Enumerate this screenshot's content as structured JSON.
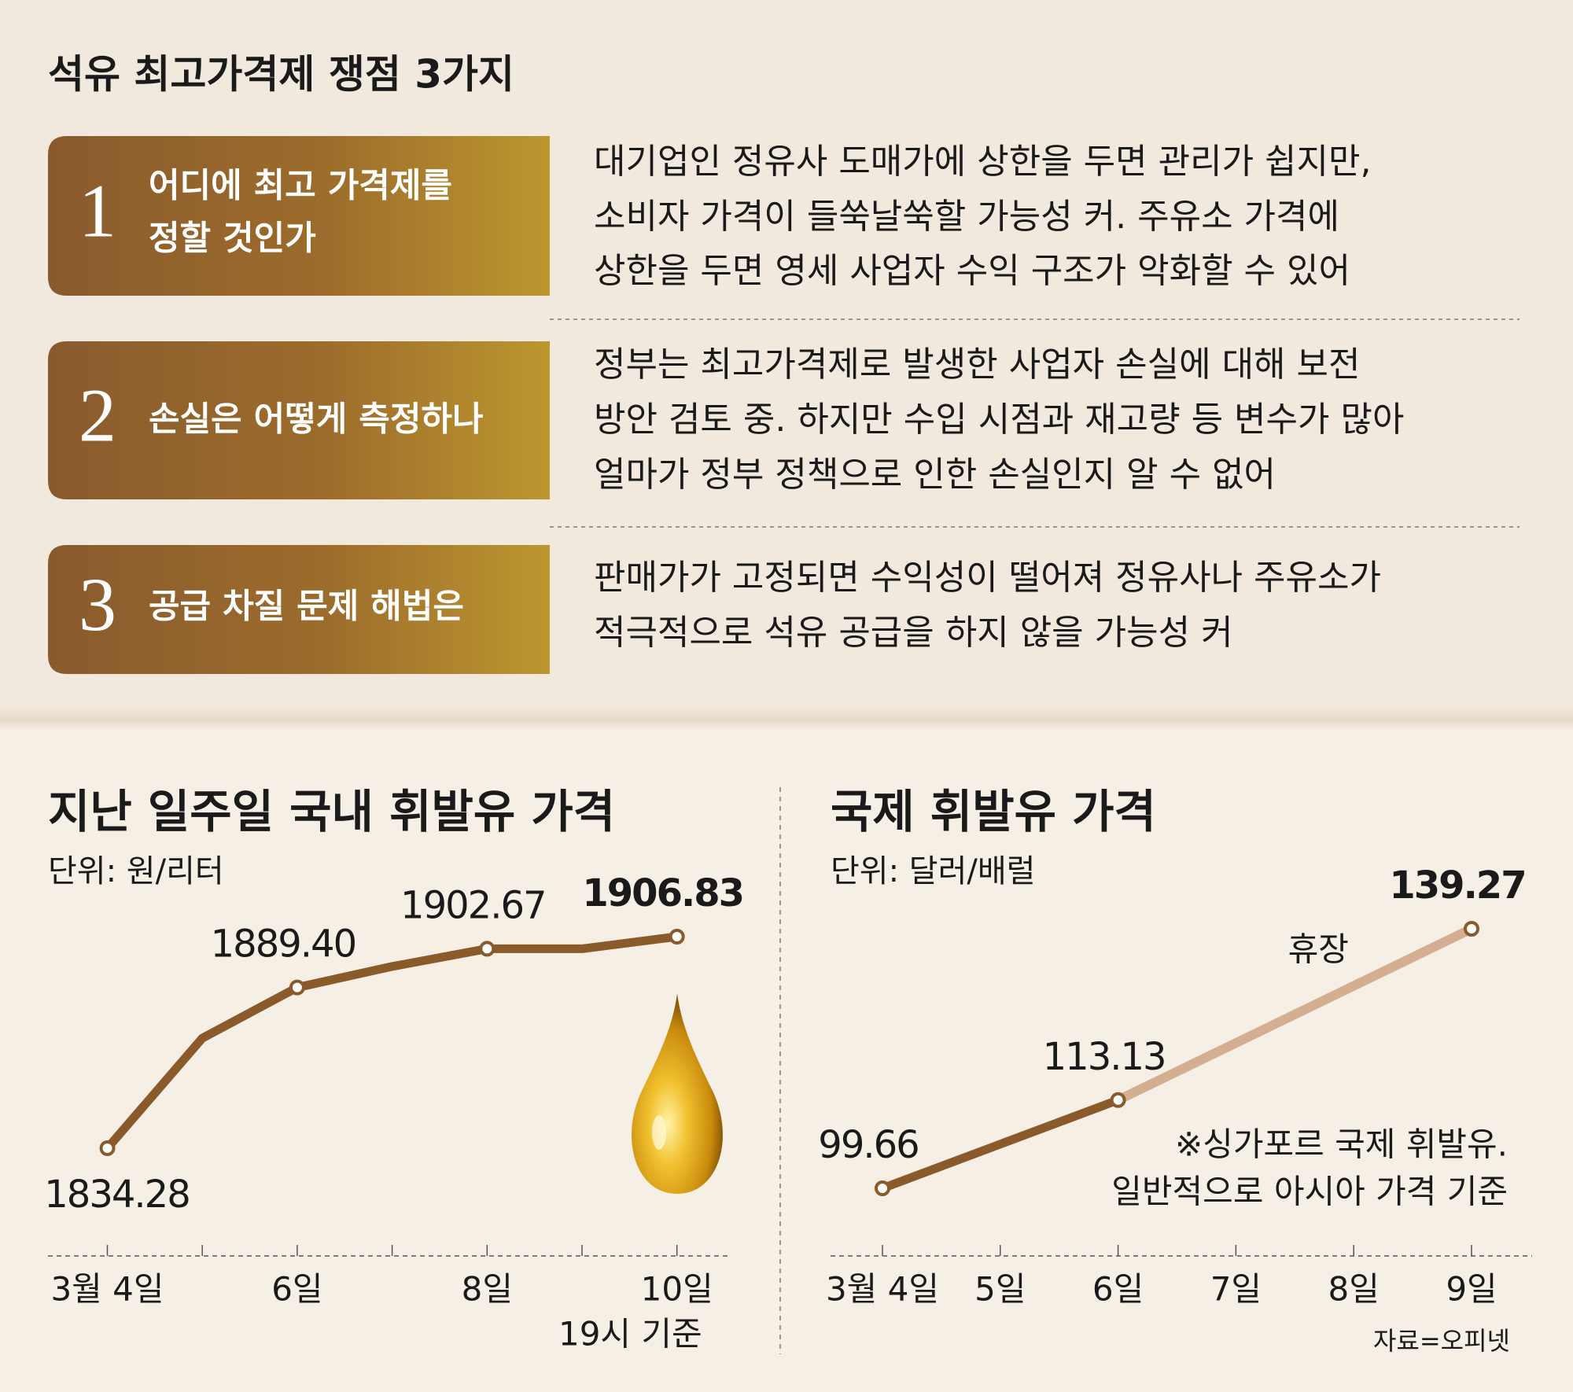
{
  "title": "석유 최고가격제 쟁점 3가지",
  "issues": [
    {
      "number": 1,
      "heading": [
        "어디에 최고 가격제를",
        "정할 것인가"
      ],
      "body": [
        "대기업인 정유사 도매가에 상한을 두면 관리가 쉽지만,",
        "소비자 가격이 들쑥날쑥할 가능성 커. 주유소 가격에",
        "상한을 두면 영세 사업자 수익 구조가 악화할 수 있어"
      ]
    },
    {
      "number": 2,
      "heading": [
        "손실은 어떻게 측정하나"
      ],
      "body": [
        "정부는 최고가격제로 발생한 사업자 손실에 대해 보전",
        "방안 검토 중. 하지만 수입 시점과 재고량 등 변수가 많아",
        "얼마가 정부 정책으로 인한 손실인지 알 수 없어"
      ]
    },
    {
      "number": 3,
      "heading": [
        "공급 차질 문제 해법은"
      ],
      "body": [
        "판매가가 고정되면 수익성이 떨어져 정유사나 주유소가",
        "적극적으로 석유 공급을 하지 않을 가능성 커"
      ]
    }
  ],
  "chart_data": [
    {
      "type": "line",
      "title": "지난 일주일 국내 휘발유 가격",
      "subtitle": "단위: 원/리터",
      "categories": [
        "3월 4일",
        null,
        "6일",
        null,
        "8일",
        null,
        "10일"
      ],
      "x_note": "19시 기준",
      "values": [
        1834.28,
        1872,
        1889.4,
        1896.6,
        1902.67,
        1902.67,
        1906.83
      ],
      "value_labels": [
        "1834.28",
        null,
        "1889.40",
        null,
        "1902.67",
        null,
        "1906.83"
      ],
      "color": "#8b5a2b"
    },
    {
      "type": "line",
      "title": "국제 휘발유 가격",
      "subtitle": "단위: 달러/배럴",
      "categories": [
        "3월 4일",
        "5일",
        "6일",
        "7일",
        "8일",
        "9일"
      ],
      "values": [
        99.66,
        106.4,
        113.13,
        null,
        null,
        139.27
      ],
      "value_labels": [
        "99.66",
        null,
        "113.13",
        null,
        null,
        "139.27"
      ],
      "color": "#8b5a2b",
      "gap_color": "#d4ae90",
      "gap_label": "휴장",
      "note": [
        "※싱가포르 국제 휘발유.",
        "일반적으로 아시아 가격 기준"
      ]
    }
  ],
  "source": "자료=오피넷"
}
